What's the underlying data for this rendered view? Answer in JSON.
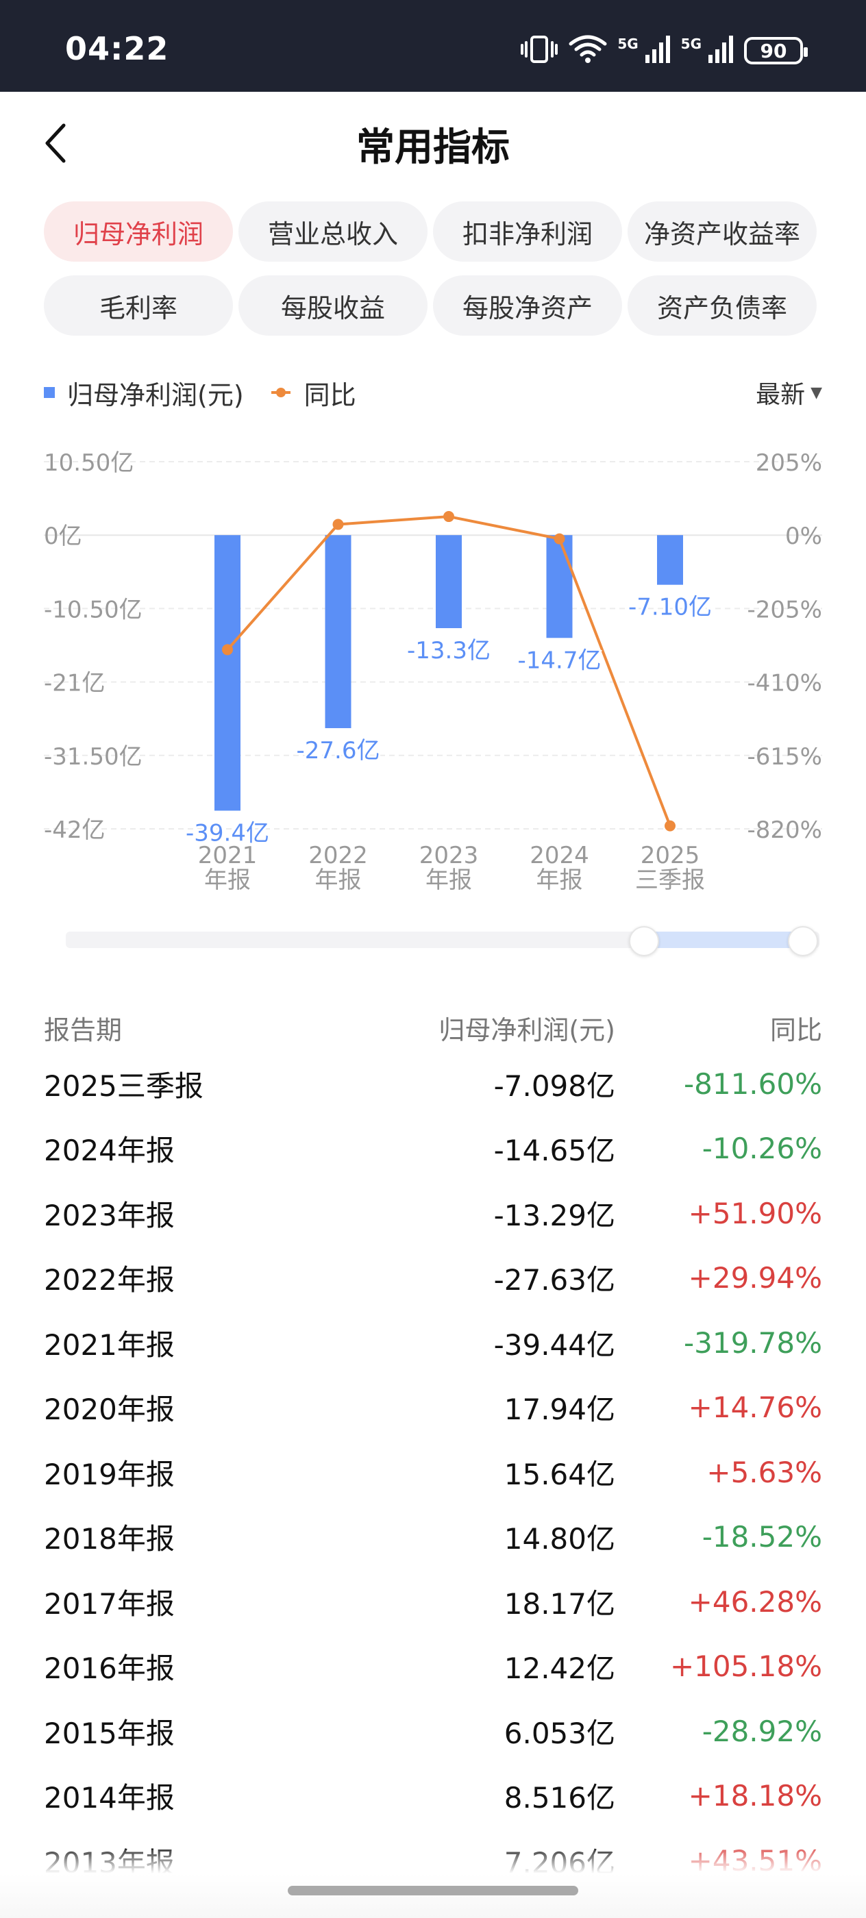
{
  "status_bar": {
    "time": "04:22",
    "network_1": "5G",
    "network_2": "5G",
    "battery": "90",
    "icons": [
      "vibrate-icon",
      "wifi-icon",
      "signal-icon",
      "signal-icon",
      "battery-icon"
    ]
  },
  "header": {
    "title": "常用指标",
    "back_icon": "chevron-left-icon"
  },
  "tabs": [
    {
      "label": "归母净利润",
      "active": true
    },
    {
      "label": "营业总收入",
      "active": false
    },
    {
      "label": "扣非净利润",
      "active": false
    },
    {
      "label": "净资产收益率",
      "active": false
    },
    {
      "label": "毛利率",
      "active": false
    },
    {
      "label": "每股收益",
      "active": false
    },
    {
      "label": "每股净资产",
      "active": false
    },
    {
      "label": "资产负债率",
      "active": false
    }
  ],
  "legend": {
    "bar_label": "归母净利润(元)",
    "line_label": "同比",
    "sort_label": "最新"
  },
  "colors": {
    "bar": "#5b8ff6",
    "line": "#ee8a3c",
    "positive": "#d9413f",
    "negative": "#3e9f5a",
    "active_tab_text": "#e0414a",
    "active_tab_bg": "#fbeaea"
  },
  "chart_data": {
    "type": "bar",
    "categories": [
      [
        "2021",
        "年报"
      ],
      [
        "2022",
        "年报"
      ],
      [
        "2023",
        "年报"
      ],
      [
        "2024",
        "年报"
      ],
      [
        "2025",
        "三季报"
      ]
    ],
    "series": [
      {
        "name": "归母净利润(元)",
        "type": "bar",
        "axis": "left",
        "values": [
          -39.4,
          -27.6,
          -13.3,
          -14.7,
          -7.1
        ],
        "data_labels": [
          "-39.4亿",
          "-27.6亿",
          "-13.3亿",
          "-14.7亿",
          "-7.10亿"
        ]
      },
      {
        "name": "同比",
        "type": "line",
        "axis": "right",
        "values": [
          -319.78,
          29.94,
          51.9,
          -10.26,
          -811.6
        ]
      }
    ],
    "left_axis": {
      "ticks": [
        "10.50亿",
        "0亿",
        "-10.50亿",
        "-21亿",
        "-31.50亿",
        "-42亿"
      ],
      "tick_values": [
        10.5,
        0,
        -10.5,
        -21,
        -31.5,
        -42
      ],
      "range": [
        -42,
        10.5
      ],
      "unit": "亿"
    },
    "right_axis": {
      "ticks": [
        "205%",
        "0%",
        "-205%",
        "-410%",
        "-615%",
        "-820%"
      ],
      "tick_values": [
        205,
        0,
        -205,
        -410,
        -615,
        -820
      ],
      "range": [
        -820,
        205
      ],
      "unit": "%"
    },
    "grid": true,
    "legend_position": "top-left"
  },
  "table": {
    "headers": {
      "period": "报告期",
      "value": "归母净利润(元)",
      "yoy": "同比"
    },
    "rows": [
      {
        "period": "2025三季报",
        "value": "-7.098亿",
        "yoy": "-811.60%",
        "sign": "neg"
      },
      {
        "period": "2024年报",
        "value": "-14.65亿",
        "yoy": "-10.26%",
        "sign": "neg"
      },
      {
        "period": "2023年报",
        "value": "-13.29亿",
        "yoy": "+51.90%",
        "sign": "pos"
      },
      {
        "period": "2022年报",
        "value": "-27.63亿",
        "yoy": "+29.94%",
        "sign": "pos"
      },
      {
        "period": "2021年报",
        "value": "-39.44亿",
        "yoy": "-319.78%",
        "sign": "neg"
      },
      {
        "period": "2020年报",
        "value": "17.94亿",
        "yoy": "+14.76%",
        "sign": "pos"
      },
      {
        "period": "2019年报",
        "value": "15.64亿",
        "yoy": "+5.63%",
        "sign": "pos"
      },
      {
        "period": "2018年报",
        "value": "14.80亿",
        "yoy": "-18.52%",
        "sign": "neg"
      },
      {
        "period": "2017年报",
        "value": "18.17亿",
        "yoy": "+46.28%",
        "sign": "pos"
      },
      {
        "period": "2016年报",
        "value": "12.42亿",
        "yoy": "+105.18%",
        "sign": "pos"
      },
      {
        "period": "2015年报",
        "value": "6.053亿",
        "yoy": "-28.92%",
        "sign": "neg"
      },
      {
        "period": "2014年报",
        "value": "8.516亿",
        "yoy": "+18.18%",
        "sign": "pos"
      },
      {
        "period": "2013年报",
        "value": "7.206亿",
        "yoy": "+43.51%",
        "sign": "pos"
      }
    ]
  }
}
